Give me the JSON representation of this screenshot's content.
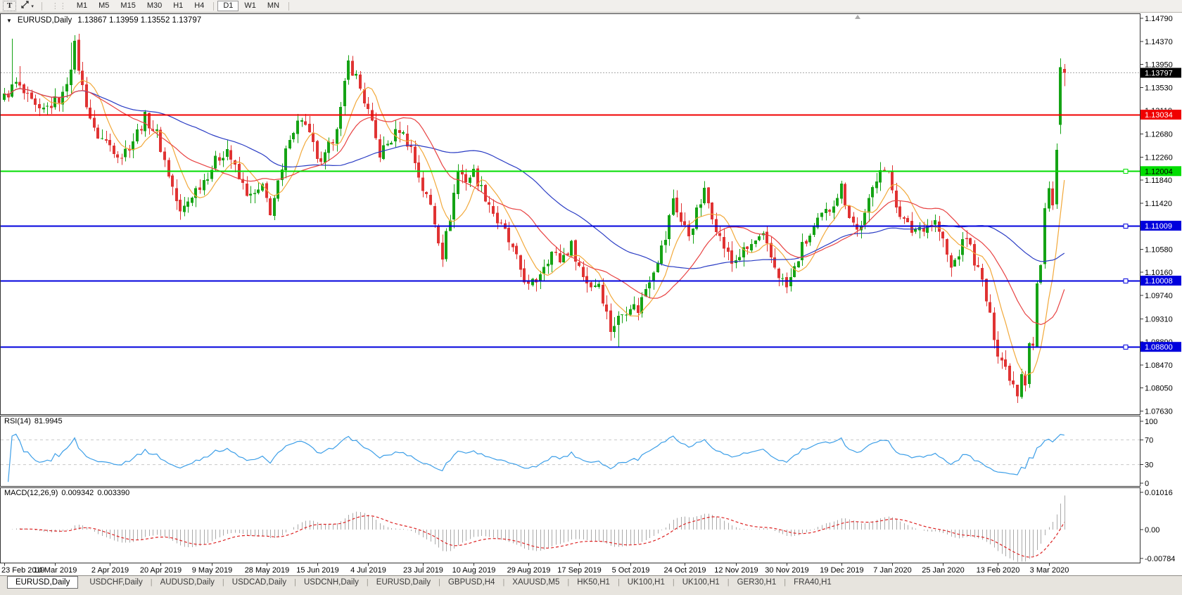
{
  "toolbar": {
    "text_tool": "T",
    "timeframes": [
      "M1",
      "M5",
      "M15",
      "M30",
      "H1",
      "H4",
      "D1",
      "W1",
      "MN"
    ],
    "active_timeframe": "D1"
  },
  "header": {
    "symbol_period": "EURUSD,Daily",
    "ohlc": "1.13867 1.13959 1.13552 1.13797"
  },
  "rsi_panel": {
    "label": "RSI(14)",
    "value": "81.9945"
  },
  "macd_panel": {
    "label": "MACD(12,26,9)",
    "value_main": "0.009342",
    "value_signal": "0.003390"
  },
  "tabs": [
    {
      "label": "EURUSD,Daily",
      "active": true
    },
    {
      "label": "USDCHF,Daily"
    },
    {
      "label": "AUDUSD,Daily"
    },
    {
      "label": "USDCAD,Daily"
    },
    {
      "label": "USDCNH,Daily"
    },
    {
      "label": "EURUSD,Daily"
    },
    {
      "label": "GBPUSD,H4"
    },
    {
      "label": "XAUUSD,M5"
    },
    {
      "label": "HK50,H1"
    },
    {
      "label": "UK100,H1"
    },
    {
      "label": "UK100,H1"
    },
    {
      "label": "GER30,H1"
    },
    {
      "label": "FRA40,H1"
    }
  ],
  "chart_data": {
    "type": "candlestick",
    "symbol": "EURUSD",
    "period": "Daily",
    "bars_count": 272,
    "last_bar": {
      "open": 1.13867,
      "high": 1.13959,
      "low": 1.13552,
      "close": 1.13797
    },
    "current_price": {
      "value": 1.13797,
      "label": "1.13797",
      "line_color": "#aaaaaa",
      "box_color": "#000000",
      "text_color": "#ffffff"
    },
    "candle_colors": {
      "up": "#15a315",
      "down": "#e03333"
    },
    "price_axis_ticks": [
      "1.14790",
      "1.14370",
      "1.13950",
      "1.13530",
      "1.13110",
      "1.12680",
      "1.12260",
      "1.11840",
      "1.11420",
      "1.11000",
      "1.10580",
      "1.10160",
      "1.09740",
      "1.09310",
      "1.08890",
      "1.08470",
      "1.08050",
      "1.07630"
    ],
    "date_axis_ticks": [
      {
        "b": 0,
        "t": "23 Feb 2019"
      },
      {
        "b": 13,
        "t": "14 Mar 2019"
      },
      {
        "b": 27,
        "t": "2 Apr 2019"
      },
      {
        "b": 40,
        "t": "20 Apr 2019"
      },
      {
        "b": 53,
        "t": "9 May 2019"
      },
      {
        "b": 67,
        "t": "28 May 2019"
      },
      {
        "b": 80,
        "t": "15 Jun 2019"
      },
      {
        "b": 93,
        "t": "4 Jul 2019"
      },
      {
        "b": 107,
        "t": "23 Jul 2019"
      },
      {
        "b": 120,
        "t": "10 Aug 2019"
      },
      {
        "b": 134,
        "t": "29 Aug 2019"
      },
      {
        "b": 147,
        "t": "17 Sep 2019"
      },
      {
        "b": 160,
        "t": "5 Oct 2019"
      },
      {
        "b": 174,
        "t": "24 Oct 2019"
      },
      {
        "b": 187,
        "t": "12 Nov 2019"
      },
      {
        "b": 200,
        "t": "30 Nov 2019"
      },
      {
        "b": 214,
        "t": "19 Dec 2019"
      },
      {
        "b": 227,
        "t": "7 Jan 2020"
      },
      {
        "b": 240,
        "t": "25 Jan 2020"
      },
      {
        "b": 254,
        "t": "13 Feb 2020"
      },
      {
        "b": 267,
        "t": "3 Mar 2020"
      }
    ],
    "hlines": [
      {
        "price": 1.13034,
        "label": "1.13034",
        "color": "#f00000",
        "text_color": "#ffffff",
        "handle": false
      },
      {
        "price": 1.12004,
        "label": "1.12004",
        "color": "#00dd00",
        "text_color": "#000000",
        "handle": true
      },
      {
        "price": 1.11009,
        "label": "1.11009",
        "color": "#0000dd",
        "text_color": "#ffffff",
        "handle": true
      },
      {
        "price": 1.10008,
        "label": "1.10008",
        "color": "#0000dd",
        "text_color": "#ffffff",
        "handle": true
      },
      {
        "price": 1.088,
        "label": "1.08800",
        "color": "#0000dd",
        "text_color": "#ffffff",
        "handle": true
      }
    ],
    "overlays": [
      {
        "name": "ma-fast",
        "period": 8,
        "color": "#f2a93b"
      },
      {
        "name": "ma-slow",
        "period": 50,
        "color": "#2a3cc4"
      },
      {
        "name": "ma-mid",
        "period": 20,
        "color": "#e84343"
      }
    ],
    "rsi": {
      "name": "RSI",
      "params": 14,
      "value": 81.9945,
      "color": "#3d9fe8",
      "ticks": [
        {
          "v": 100,
          "t": "100"
        },
        {
          "v": 70,
          "t": "70"
        },
        {
          "v": 30,
          "t": "30"
        },
        {
          "v": 0,
          "t": "0"
        }
      ],
      "levels": [
        70,
        30
      ]
    },
    "macd": {
      "name": "MACD",
      "params": "12,26,9",
      "value_main": 0.009342,
      "value_signal": 0.00339,
      "histogram_color": "#aaaaaa",
      "signal_color": "#dd2222",
      "ticks": [
        {
          "v": 0.01016,
          "t": "0.01016"
        },
        {
          "v": 0,
          "t": "0.00"
        },
        {
          "v": -0.00784,
          "t": "-0.00784"
        }
      ]
    },
    "close_path_anchors": [
      [
        0,
        1.1335
      ],
      [
        3,
        1.136
      ],
      [
        6,
        1.1332
      ],
      [
        9,
        1.1305
      ],
      [
        12,
        1.1322
      ],
      [
        15,
        1.1338
      ],
      [
        17,
        1.1395
      ],
      [
        18,
        1.1428
      ],
      [
        20,
        1.1352
      ],
      [
        23,
        1.1272
      ],
      [
        27,
        1.1248
      ],
      [
        30,
        1.1228
      ],
      [
        33,
        1.1258
      ],
      [
        36,
        1.1298
      ],
      [
        39,
        1.1268
      ],
      [
        42,
        1.1195
      ],
      [
        45,
        1.1122
      ],
      [
        48,
        1.1158
      ],
      [
        51,
        1.1185
      ],
      [
        54,
        1.1218
      ],
      [
        57,
        1.1242
      ],
      [
        60,
        1.1185
      ],
      [
        63,
        1.1152
      ],
      [
        66,
        1.1168
      ],
      [
        68,
        1.1128
      ],
      [
        71,
        1.1198
      ],
      [
        73,
        1.1268
      ],
      [
        76,
        1.1298
      ],
      [
        79,
        1.1245
      ],
      [
        81,
        1.1208
      ],
      [
        84,
        1.1262
      ],
      [
        86,
        1.1312
      ],
      [
        88,
        1.1398
      ],
      [
        90,
        1.1372
      ],
      [
        93,
        1.1308
      ],
      [
        96,
        1.1232
      ],
      [
        99,
        1.1258
      ],
      [
        101,
        1.1278
      ],
      [
        104,
        1.1242
      ],
      [
        107,
        1.1168
      ],
      [
        109,
        1.1138
      ],
      [
        112,
        1.1048
      ],
      [
        114,
        1.1118
      ],
      [
        116,
        1.1202
      ],
      [
        118,
        1.1185
      ],
      [
        120,
        1.1198
      ],
      [
        122,
        1.1168
      ],
      [
        124,
        1.1142
      ],
      [
        126,
        1.1108
      ],
      [
        128,
        1.1088
      ],
      [
        131,
        1.1038
      ],
      [
        134,
        1.0988
      ],
      [
        136,
        1.1002
      ],
      [
        138,
        1.1032
      ],
      [
        140,
        1.1052
      ],
      [
        142,
        1.1038
      ],
      [
        145,
        1.1065
      ],
      [
        148,
        1.1008
      ],
      [
        150,
        1.0992
      ],
      [
        152,
        1.0998
      ],
      [
        155,
        1.0912
      ],
      [
        157,
        1.0932
      ],
      [
        160,
        1.0958
      ],
      [
        162,
        1.0948
      ],
      [
        164,
        1.0988
      ],
      [
        167,
        1.1042
      ],
      [
        169,
        1.1078
      ],
      [
        171,
        1.1152
      ],
      [
        173,
        1.1108
      ],
      [
        175,
        1.1085
      ],
      [
        177,
        1.1125
      ],
      [
        179,
        1.1162
      ],
      [
        181,
        1.1122
      ],
      [
        183,
        1.1078
      ],
      [
        186,
        1.1032
      ],
      [
        188,
        1.1048
      ],
      [
        190,
        1.1058
      ],
      [
        192,
        1.1072
      ],
      [
        194,
        1.1078
      ],
      [
        196,
        1.1042
      ],
      [
        198,
        1.1012
      ],
      [
        200,
        1.0988
      ],
      [
        202,
        1.1022
      ],
      [
        204,
        1.1062
      ],
      [
        206,
        1.1082
      ],
      [
        209,
        1.1118
      ],
      [
        211,
        1.1132
      ],
      [
        214,
        1.1172
      ],
      [
        216,
        1.1122
      ],
      [
        218,
        1.1092
      ],
      [
        220,
        1.1118
      ],
      [
        222,
        1.1168
      ],
      [
        224,
        1.1212
      ],
      [
        226,
        1.1192
      ],
      [
        228,
        1.1142
      ],
      [
        230,
        1.1108
      ],
      [
        232,
        1.1092
      ],
      [
        234,
        1.1098
      ],
      [
        236,
        1.1102
      ],
      [
        238,
        1.1108
      ],
      [
        240,
        1.1072
      ],
      [
        242,
        1.1022
      ],
      [
        244,
        1.1052
      ],
      [
        246,
        1.1082
      ],
      [
        248,
        1.1038
      ],
      [
        250,
        1.0998
      ],
      [
        252,
        1.0932
      ],
      [
        254,
        1.0872
      ],
      [
        256,
        1.0842
      ],
      [
        258,
        1.0812
      ],
      [
        259,
        1.0792
      ],
      [
        260,
        1.0832
      ],
      [
        261,
        1.0812
      ],
      [
        262,
        1.0888
      ],
      [
        263,
        1.0882
      ],
      [
        264,
        1.0995
      ],
      [
        265,
        1.1028
      ],
      [
        266,
        1.1132
      ],
      [
        267,
        1.1172
      ],
      [
        268,
        1.1138
      ],
      [
        269,
        1.1238
      ],
      [
        270,
        1.139
      ],
      [
        271,
        1.13797
      ]
    ],
    "bar_overrides": [
      {
        "i": 2,
        "h": 1.1442
      },
      {
        "i": 4,
        "h": 1.1392
      },
      {
        "i": 17,
        "h": 1.1435
      },
      {
        "i": 18,
        "h": 1.1448
      },
      {
        "i": 88,
        "h": 1.1412
      },
      {
        "i": 112,
        "l": 1.1026
      },
      {
        "i": 157,
        "l": 1.0879
      },
      {
        "i": 259,
        "l": 1.0778
      },
      {
        "i": 270,
        "o": 1.1285,
        "h": 1.1406,
        "l": 1.1268,
        "c": 1.139
      },
      {
        "i": 271,
        "o": 1.13867,
        "h": 1.13959,
        "l": 1.13552,
        "c": 1.13797
      }
    ]
  }
}
